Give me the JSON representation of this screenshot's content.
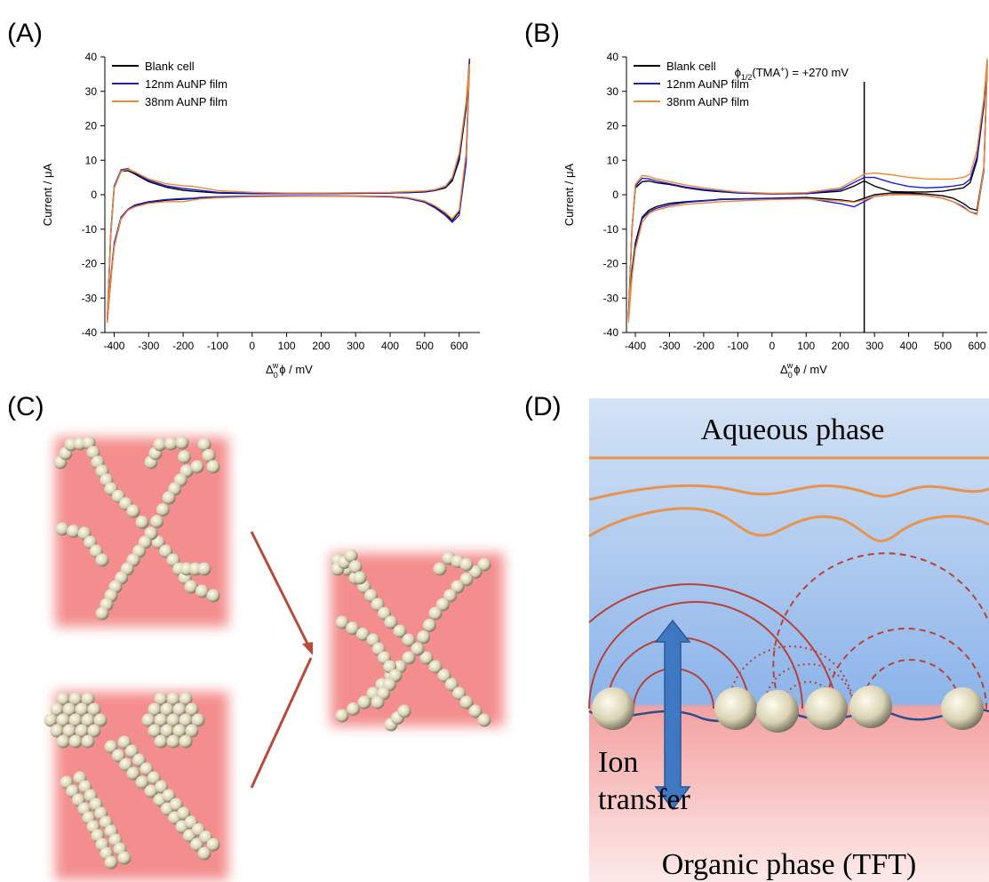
{
  "panel_labels": [
    "(A)",
    "(B)",
    "(C)",
    "(D)"
  ],
  "chart_data": [
    {
      "type": "line",
      "y_label": "Current / μA",
      "x_label": [
        "Δ",
        "0",
        "w",
        "ϕ / mV"
      ],
      "x": [
        630,
        620,
        600,
        580,
        560,
        530,
        500,
        450,
        400,
        300,
        200,
        100,
        0,
        -100,
        -170,
        -200,
        -250,
        -300,
        -340,
        -360,
        -380,
        -400,
        -410,
        -420,
        -410,
        -400,
        -380,
        -360,
        -340,
        -300,
        -250,
        -200,
        -170,
        -150,
        -100,
        0,
        100,
        200,
        300,
        400,
        450,
        500,
        530,
        560,
        580,
        600,
        620,
        630
      ],
      "xlim": [
        -427,
        660
      ],
      "xticks": [
        -400,
        -300,
        -200,
        -100,
        0,
        100,
        200,
        300,
        400,
        500,
        600
      ],
      "ylim": [
        -40,
        40
      ],
      "yticks": [
        -40,
        -30,
        -20,
        -10,
        0,
        10,
        20,
        30,
        40
      ],
      "legend": "upper left",
      "series": [
        {
          "name": "Blank cell",
          "color": "#000000",
          "values": [
            39,
            25,
            10,
            4,
            2,
            1.2,
            0.8,
            0.6,
            0.5,
            0.4,
            0.3,
            0.3,
            0.3,
            0.5,
            1.0,
            1.3,
            2.2,
            3.8,
            6.0,
            7.0,
            6.8,
            2.0,
            -12,
            -37,
            -25,
            -15,
            -7,
            -4.5,
            -3.2,
            -2.2,
            -1.6,
            -1.3,
            -1.1,
            -0.9,
            -0.7,
            -0.5,
            -0.4,
            -0.4,
            -0.4,
            -0.6,
            -1.0,
            -2.0,
            -3.5,
            -5.5,
            -7.5,
            -5,
            10,
            39
          ]
        },
        {
          "name": "12nm AuNP film",
          "color": "#1c1cd8",
          "values": [
            39.5,
            26,
            11,
            4.5,
            2.2,
            1.3,
            0.9,
            0.7,
            0.5,
            0.4,
            0.3,
            0.3,
            0.4,
            0.7,
            1.5,
            1.8,
            2.6,
            4.2,
            6.4,
            7.6,
            7.2,
            2.5,
            -11,
            -36,
            -24,
            -14,
            -6.5,
            -4.2,
            -3,
            -2,
            -1.4,
            -1.1,
            -1,
            -0.8,
            -0.6,
            -0.4,
            -0.3,
            -0.3,
            -0.3,
            -0.6,
            -1,
            -2.2,
            -3.8,
            -6,
            -8,
            -6,
            9,
            38
          ]
        },
        {
          "name": "38nm AuNP film",
          "color": "#f08a30",
          "values": [
            38,
            27,
            12,
            5,
            2.5,
            1.5,
            1.1,
            0.9,
            0.7,
            0.6,
            0.5,
            0.5,
            0.7,
            1.2,
            2.4,
            2.6,
            3.2,
            4.6,
            6.6,
            7.4,
            6.8,
            2,
            -12,
            -37,
            -25,
            -15,
            -7,
            -4.5,
            -3.5,
            -2.5,
            -2,
            -2,
            -1.5,
            -1.2,
            -0.9,
            -0.6,
            -0.5,
            -0.4,
            -0.3,
            -0.4,
            -0.8,
            -1.8,
            -3.2,
            -5.2,
            -7,
            -4.5,
            12,
            38
          ]
        }
      ]
    },
    {
      "type": "line",
      "y_label": "Current / μA",
      "x_label": [
        "Δ",
        "0",
        "w",
        "ϕ / mV"
      ],
      "x": [
        630,
        620,
        600,
        580,
        560,
        530,
        500,
        450,
        400,
        350,
        300,
        270,
        240,
        200,
        100,
        0,
        -100,
        -170,
        -200,
        -250,
        -300,
        -340,
        -360,
        -380,
        -400,
        -410,
        -420,
        -410,
        -400,
        -380,
        -360,
        -340,
        -300,
        -250,
        -200,
        -170,
        -150,
        -100,
        0,
        100,
        200,
        240,
        270,
        300,
        350,
        400,
        450,
        500,
        530,
        560,
        580,
        600,
        620,
        630
      ],
      "xlim": [
        -426,
        630
      ],
      "xticks": [
        -400,
        -300,
        -200,
        -100,
        0,
        100,
        200,
        300,
        400,
        500,
        600
      ],
      "ylim": [
        -40,
        40
      ],
      "yticks": [
        -40,
        -30,
        -20,
        -10,
        0,
        10,
        20,
        30,
        40
      ],
      "legend": "upper left",
      "annotation": {
        "x": 270,
        "text": [
          "ϕ",
          "1/2",
          "(TMA",
          "+",
          ") = +270 mV"
        ]
      },
      "series": [
        {
          "name": "Blank cell",
          "color": "#000000",
          "values": [
            39,
            26,
            10,
            3.5,
            2,
            1.5,
            1,
            0.8,
            0.8,
            0.9,
            2.5,
            4,
            2.5,
            1,
            0.3,
            0.3,
            0.5,
            1.0,
            1.3,
            2,
            3,
            3.5,
            4,
            3.8,
            2,
            -10,
            -35,
            -22,
            -14,
            -6.5,
            -4.5,
            -3.5,
            -2.5,
            -2,
            -1.7,
            -1.5,
            -1.3,
            -1.2,
            -1,
            -0.8,
            -1.5,
            -2,
            -1,
            0,
            0.5,
            0.5,
            0.2,
            -0.3,
            -1,
            -2.5,
            -4,
            -4.5,
            8,
            38
          ]
        },
        {
          "name": "12nm AuNP film",
          "color": "#1c1cd8",
          "values": [
            39,
            27,
            11,
            4.5,
            3,
            2.5,
            2.2,
            2,
            2.4,
            3.5,
            5,
            5,
            3.5,
            1.5,
            0.3,
            0.2,
            0.5,
            1.2,
            1.5,
            2.2,
            3.2,
            4,
            4.6,
            4.8,
            2.5,
            -10,
            -36,
            -23,
            -15,
            -7,
            -5,
            -4,
            -3,
            -2.2,
            -1.8,
            -1.6,
            -1.4,
            -1.3,
            -1.1,
            -1,
            -2.6,
            -3.5,
            -2,
            -0.5,
            0,
            0.2,
            -0.2,
            -1,
            -2,
            -3.5,
            -5,
            -5.5,
            7,
            37
          ]
        },
        {
          "name": "38nm AuNP film",
          "color": "#f08a30",
          "values": [
            39.5,
            28,
            13,
            6,
            5,
            4.6,
            4.5,
            4.6,
            5,
            5.8,
            6.3,
            6,
            4.2,
            2,
            0.6,
            0.4,
            0.8,
            1.6,
            2,
            2.8,
            3.8,
            4.6,
            5.3,
            5.6,
            3,
            -10,
            -37,
            -24,
            -16,
            -8,
            -5.5,
            -4.5,
            -3.5,
            -2.8,
            -2.4,
            -2.2,
            -2,
            -1.8,
            -1.4,
            -1.2,
            -1.8,
            -2.2,
            -1.5,
            -0.5,
            0,
            0,
            -0.2,
            -1,
            -2,
            -3.8,
            -5,
            -5.8,
            8,
            38
          ]
        }
      ]
    }
  ],
  "diagram": {
    "top_text": "Aqueous phase",
    "arrow_text": [
      "Ion",
      "transfer"
    ],
    "bottom_text": "Organic phase (TFT)"
  }
}
